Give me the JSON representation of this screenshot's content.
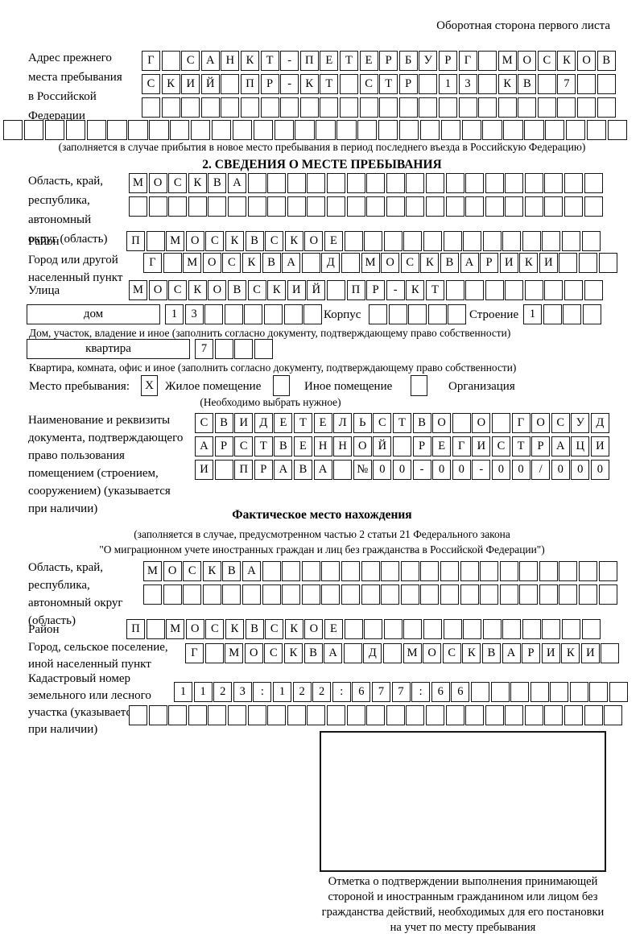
{
  "page": {
    "back_note": "Оборотная сторона первого листа"
  },
  "prev_address": {
    "label": "Адрес прежнего\nместа пребывания\nв Российской\nФедерации",
    "rows": [
      "Г САНКТ-ПЕТЕРБУРГ МОСКОВ",
      "СКИЙ ПР-КТ СТР 13 КВ 7  ",
      "                        ",
      "                              "
    ],
    "caption": "(заполняется в случае прибытия в новое место пребывания в период последнего въезда в Российскую Федерацию)"
  },
  "section2": {
    "title": "2. СВЕДЕНИЯ О МЕСТЕ ПРЕБЫВАНИЯ",
    "region": {
      "label": "Область, край,\nреспублика,\nавтономный\nокруг (область)",
      "rows": [
        "МОСКВА                  ",
        "                        "
      ]
    },
    "district": {
      "label": "Район",
      "row": "П МОСКВСКОЕ             "
    },
    "city": {
      "label": "Город или другой\nнаселенный пункт",
      "row": "Г МОСКВА Д МОСКВАРИКИ   "
    },
    "street": {
      "label": "Улица",
      "row": "МОСКОВСКИЙ ПР-КТ        "
    },
    "house": {
      "box_label": "дом",
      "cells": "13      ",
      "korpus_label": "Корпус",
      "korpus_cells": "     ",
      "stroenie_label": "Строение",
      "stroenie_cells": "1   ",
      "caption": "Дом, участок, владение и иное (заполнить согласно документу, подтверждающему право собственности)"
    },
    "apartment": {
      "box_label": "квартира",
      "cells": "7   ",
      "caption": "Квартира, комната, офис и иное (заполнить согласно документу, подтверждающему право собственности)"
    },
    "stay_type": {
      "label": "Место пребывания:",
      "options": [
        {
          "label": "Жилое помещение",
          "mark": "X"
        },
        {
          "label": "Иное помещение",
          "mark": ""
        },
        {
          "label": "Организация",
          "mark": ""
        }
      ],
      "note": "(Необходимо выбрать нужное)"
    },
    "document": {
      "label": "Наименование и реквизиты\nдокумента, подтверждающего\nправо пользования\nпомещением (строением,\nсооружением) (указывается\nпри наличии)",
      "rows": [
        "СВИДЕТЕЛЬСТВО О ГОСУД",
        "АРСТВЕННОЙ РЕГИСТРАЦИ",
        "И ПРАВА №00-00-00/000"
      ]
    }
  },
  "actual_location": {
    "title": "Фактическое место нахождения",
    "caption": "(заполняется в случае, предусмотренном частью 2 статьи 21 Федерального закона\n\"О миграционном учете иностранных граждан и лиц без гражданства в Российской Федерации\")",
    "region": {
      "label": "Область, край,\nреспублика,\nавтономный округ\n(область)",
      "rows": [
        "МОСКВА                  ",
        "                        "
      ]
    },
    "district": {
      "label": "Район",
      "row": "П МОСКВСКОЕ             "
    },
    "city": {
      "label": "Город, сельское поселение,\nиной населенный пункт",
      "row": "Г МОСКВА Д МОСКВАРИКИ "
    },
    "cadastral": {
      "label": "Кадастровый номер\nземельного или лесного\nучастка (указывается\nпри наличии)",
      "rows": [
        "1123:122:677:66        ",
        "                         "
      ]
    }
  },
  "stamp": {
    "caption": "Отметка о подтверждении выполнения принимающей\nстороной и иностранным гражданином или лицом без\nгражданства действий, необходимых для его постановки\nна учет по месту пребывания"
  }
}
